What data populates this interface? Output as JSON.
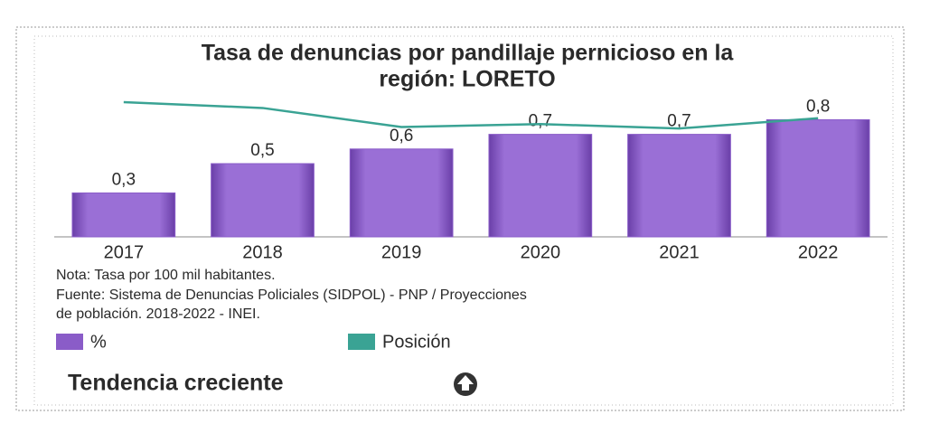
{
  "chart_data": {
    "type": "bar",
    "title": [
      "Tasa de denuncias por pandillaje pernicioso en la",
      "región: LORETO"
    ],
    "categories": [
      "2017",
      "2018",
      "2019",
      "2020",
      "2021",
      "2022"
    ],
    "series": [
      {
        "name": "%",
        "type": "bar",
        "color": "#8a5cc8",
        "values": [
          0.3,
          0.5,
          0.6,
          0.7,
          0.7,
          0.8
        ],
        "value_labels": [
          "0,3",
          "0,5",
          "0,6",
          "0,7",
          "0,7",
          "0,8"
        ]
      },
      {
        "name": "Posición",
        "type": "line",
        "color": "#3aa394",
        "values": [
          0.92,
          0.88,
          0.75,
          0.77,
          0.74,
          0.81
        ]
      }
    ],
    "ylim": [
      0,
      1
    ],
    "notes": [
      "Nota: Tasa por 100 mil habitantes.",
      "Fuente: Sistema de Denuncias Policiales (SIDPOL) - PNP / Proyecciones",
      "de población. 2018-2022 - INEI."
    ],
    "trend": "Tendencia creciente"
  }
}
